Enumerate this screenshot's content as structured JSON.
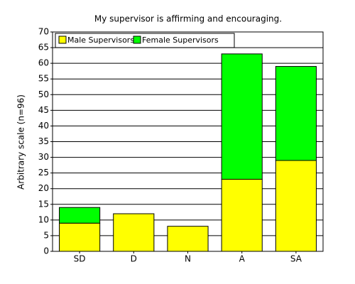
{
  "chart_data": {
    "type": "stacked_bar",
    "title": "My supervisor is affirming and encouraging.",
    "y_label": "Arbitrary scale (n=96)",
    "categories": [
      "SD",
      "D",
      "N",
      "A",
      "SA"
    ],
    "series": [
      {
        "name": "Male Supervisors",
        "color": "#ffff00",
        "values": [
          9,
          12,
          8,
          23,
          29
        ]
      },
      {
        "name": "Female Supervisors",
        "color": "#00ff00",
        "values": [
          5,
          0,
          0,
          40,
          30
        ]
      }
    ],
    "ylim": [
      0,
      70
    ],
    "yticks": [
      0,
      5,
      10,
      15,
      20,
      25,
      30,
      35,
      40,
      45,
      50,
      55,
      60,
      65,
      70
    ],
    "grid": true,
    "legend": "top-left"
  }
}
